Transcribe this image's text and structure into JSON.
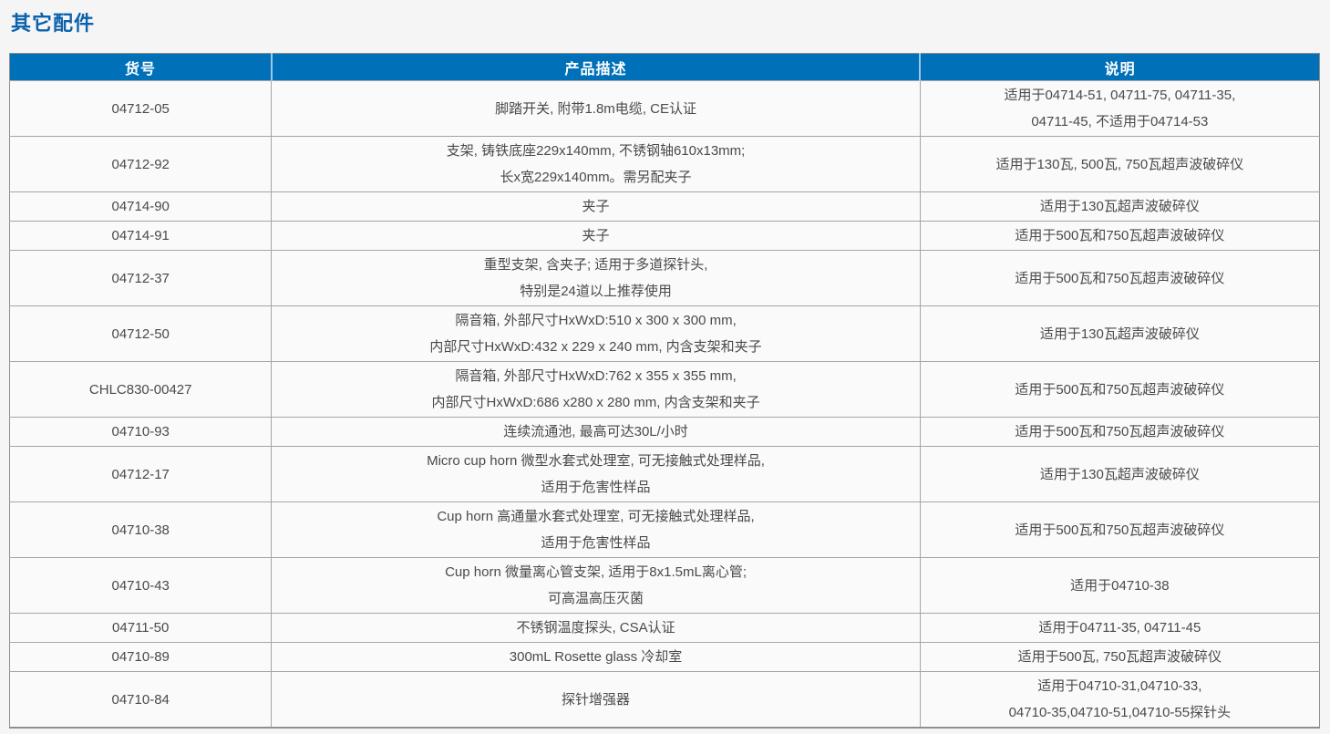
{
  "page": {
    "title": "其它配件"
  },
  "table": {
    "headers": [
      "货号",
      "产品描述",
      "说明"
    ],
    "rows": [
      {
        "catalog_number": "04712-05",
        "description": [
          "脚踏开关, 附带1.8m电缆, CE认证"
        ],
        "notes": [
          "适用于04714-51, 04711-75, 04711-35,",
          "04711-45, 不适用于04714-53"
        ]
      },
      {
        "catalog_number": "04712-92",
        "description": [
          "支架, 铸铁底座229x140mm, 不锈钢轴610x13mm;",
          "长x宽229x140mm。需另配夹子"
        ],
        "notes": [
          "适用于130瓦, 500瓦, 750瓦超声波破碎仪"
        ]
      },
      {
        "catalog_number": "04714-90",
        "description": [
          "夹子"
        ],
        "notes": [
          "适用于130瓦超声波破碎仪"
        ]
      },
      {
        "catalog_number": "04714-91",
        "description": [
          "夹子"
        ],
        "notes": [
          "适用于500瓦和750瓦超声波破碎仪"
        ]
      },
      {
        "catalog_number": "04712-37",
        "description": [
          "重型支架, 含夹子; 适用于多道探针头,",
          "特别是24道以上推荐使用"
        ],
        "notes": [
          "适用于500瓦和750瓦超声波破碎仪"
        ]
      },
      {
        "catalog_number": "04712-50",
        "description": [
          "隔音箱, 外部尺寸HxWxD:510 x 300 x 300 mm,",
          "内部尺寸HxWxD:432 x 229 x 240 mm, 内含支架和夹子"
        ],
        "notes": [
          "适用于130瓦超声波破碎仪"
        ]
      },
      {
        "catalog_number": "CHLC830-00427",
        "description": [
          "隔音箱, 外部尺寸HxWxD:762 x 355 x 355 mm,",
          "内部尺寸HxWxD:686 x280 x 280 mm, 内含支架和夹子"
        ],
        "notes": [
          "适用于500瓦和750瓦超声波破碎仪"
        ]
      },
      {
        "catalog_number": "04710-93",
        "description": [
          "连续流通池, 最高可达30L/小时"
        ],
        "notes": [
          "适用于500瓦和750瓦超声波破碎仪"
        ]
      },
      {
        "catalog_number": "04712-17",
        "description": [
          "Micro cup horn 微型水套式处理室, 可无接触式处理样品,",
          "适用于危害性样品"
        ],
        "notes": [
          "适用于130瓦超声波破碎仪"
        ]
      },
      {
        "catalog_number": "04710-38",
        "description": [
          "Cup horn 高通量水套式处理室, 可无接触式处理样品,",
          "适用于危害性样品"
        ],
        "notes": [
          "适用于500瓦和750瓦超声波破碎仪"
        ]
      },
      {
        "catalog_number": "04710-43",
        "description": [
          "Cup horn 微量离心管支架, 适用于8x1.5mL离心管;",
          "可高温高压灭菌"
        ],
        "notes": [
          "适用于04710-38"
        ]
      },
      {
        "catalog_number": "04711-50",
        "description": [
          "不锈钢温度探头, CSA认证"
        ],
        "notes": [
          "适用于04711-35, 04711-45"
        ]
      },
      {
        "catalog_number": "04710-89",
        "description": [
          "300mL Rosette glass 冷却室"
        ],
        "notes": [
          "适用于500瓦, 750瓦超声波破碎仪"
        ]
      },
      {
        "catalog_number": "04710-84",
        "description": [
          "探针增强器"
        ],
        "notes": [
          "适用于04710-31,04710-33,",
          "04710-35,04710-51,04710-55探针头"
        ]
      }
    ]
  },
  "colors": {
    "header_bg": "#0070b9",
    "header_text": "#ffffff",
    "header_separator": "#9cc7e8",
    "title_text": "#0c63ad",
    "body_text": "#4a4a4a",
    "grid_border": "#a5a5a5",
    "page_bg": "#f5f5f6",
    "cell_bg": "#fafafa"
  }
}
